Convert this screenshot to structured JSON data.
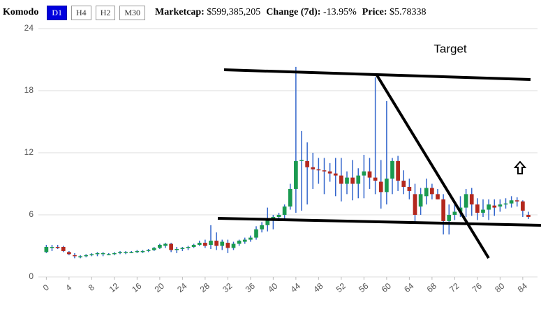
{
  "header": {
    "name": "Komodo",
    "buttons": [
      "D1",
      "H4",
      "H2",
      "M30"
    ],
    "active_button": 0,
    "stats": [
      {
        "label": "Marketcap:",
        "value": "$599,385,205"
      },
      {
        "label": "Change (7d):",
        "value": "-13.95%"
      },
      {
        "label": "Price:",
        "value": "$5.78338"
      }
    ]
  },
  "chart_data": {
    "type": "candlestick",
    "annotation": "Target",
    "up_color": "#1a9a50",
    "down_color": "#b3281e",
    "wick_color": "#3366cc",
    "x": [
      0,
      1,
      2,
      3,
      4,
      5,
      6,
      7,
      8,
      9,
      10,
      11,
      12,
      13,
      14,
      15,
      16,
      17,
      18,
      19,
      20,
      21,
      22,
      23,
      24,
      25,
      26,
      27,
      28,
      29,
      30,
      31,
      32,
      33,
      34,
      35,
      36,
      37,
      38,
      39,
      40,
      41,
      42,
      43,
      44,
      45,
      46,
      47,
      48,
      49,
      50,
      51,
      52,
      53,
      54,
      55,
      56,
      57,
      58,
      59,
      60,
      61,
      62,
      63,
      64,
      65,
      66,
      67,
      68,
      69,
      70,
      71,
      72,
      73,
      74,
      75,
      76,
      77,
      78,
      79,
      80,
      81,
      82,
      83,
      84,
      85
    ],
    "open": [
      2.4,
      2.8,
      2.9,
      2.9,
      2.4,
      2.1,
      1.9,
      2.0,
      2.1,
      2.2,
      2.2,
      2.2,
      2.2,
      2.3,
      2.3,
      2.4,
      2.4,
      2.4,
      2.5,
      2.6,
      2.8,
      3.0,
      3.2,
      2.6,
      2.7,
      2.8,
      2.9,
      3.1,
      3.3,
      3.1,
      3.5,
      3.0,
      3.3,
      2.8,
      3.2,
      3.4,
      3.6,
      3.8,
      4.6,
      5.0,
      5.5,
      5.8,
      6.0,
      6.8,
      8.5,
      11.2,
      11.2,
      10.6,
      10.4,
      10.3,
      10.2,
      10.0,
      9.8,
      9.0,
      9.6,
      9.0,
      9.8,
      10.2,
      9.6,
      9.2,
      8.2,
      9.5,
      11.2,
      9.3,
      8.7,
      8.0,
      6.8,
      7.8,
      8.6,
      8.0,
      7.5,
      5.4,
      6.0,
      6.3,
      6.7,
      8.0,
      7.0,
      6.2,
      6.5,
      6.9,
      6.8,
      7.0,
      7.1,
      7.4,
      7.3,
      6.0
    ],
    "high": [
      3.1,
      3.1,
      3.1,
      3.0,
      2.5,
      2.3,
      2.1,
      2.2,
      2.3,
      2.4,
      2.4,
      2.3,
      2.4,
      2.5,
      2.5,
      2.5,
      2.6,
      2.6,
      2.7,
      2.9,
      3.2,
      3.3,
      3.3,
      2.9,
      2.9,
      3.0,
      3.2,
      3.5,
      3.6,
      5.0,
      4.3,
      3.6,
      3.6,
      3.4,
      3.6,
      3.8,
      4.0,
      4.9,
      5.3,
      6.7,
      6.0,
      6.2,
      7.0,
      9.0,
      20.3,
      14.1,
      13.0,
      12.0,
      11.5,
      11.5,
      11.0,
      11.5,
      11.5,
      10.2,
      11.3,
      10.5,
      11.8,
      11.5,
      19.3,
      11.3,
      17.0,
      11.5,
      11.7,
      10.3,
      9.5,
      9.0,
      8.6,
      9.5,
      9.0,
      8.5,
      8.0,
      7.0,
      7.0,
      7.8,
      8.5,
      8.6,
      7.6,
      7.5,
      7.5,
      7.5,
      7.5,
      7.6,
      7.8,
      7.7,
      7.4,
      6.3
    ],
    "low": [
      2.3,
      2.5,
      2.7,
      2.4,
      2.1,
      1.8,
      1.8,
      1.9,
      2.0,
      2.0,
      2.0,
      2.1,
      2.1,
      2.2,
      2.2,
      2.3,
      2.3,
      2.3,
      2.4,
      2.5,
      2.7,
      2.8,
      2.4,
      2.3,
      2.5,
      2.6,
      2.8,
      3.0,
      2.8,
      2.7,
      2.6,
      2.6,
      2.3,
      2.6,
      3.0,
      3.2,
      3.4,
      3.6,
      4.3,
      4.4,
      4.6,
      5.4,
      5.5,
      6.5,
      6.2,
      6.4,
      7.0,
      8.5,
      9.0,
      8.0,
      9.2,
      7.8,
      7.3,
      8.0,
      7.4,
      7.6,
      7.6,
      8.5,
      8.0,
      6.6,
      7.0,
      8.0,
      8.3,
      8.0,
      7.5,
      5.3,
      6.0,
      7.0,
      7.5,
      7.5,
      4.1,
      4.1,
      5.5,
      5.8,
      5.8,
      5.9,
      5.5,
      5.8,
      5.5,
      5.9,
      6.3,
      6.6,
      6.7,
      6.8,
      5.8,
      5.6
    ],
    "close": [
      2.9,
      2.9,
      2.8,
      2.5,
      2.2,
      2.0,
      2.0,
      2.1,
      2.2,
      2.3,
      2.3,
      2.2,
      2.3,
      2.4,
      2.4,
      2.4,
      2.5,
      2.5,
      2.6,
      2.8,
      3.1,
      3.2,
      2.6,
      2.7,
      2.8,
      2.9,
      3.1,
      3.3,
      3.0,
      3.5,
      3.0,
      3.4,
      2.8,
      3.2,
      3.5,
      3.6,
      3.8,
      4.6,
      5.0,
      5.5,
      5.8,
      6.0,
      6.8,
      8.5,
      11.2,
      11.3,
      10.6,
      10.4,
      10.3,
      10.2,
      10.0,
      9.8,
      9.0,
      9.6,
      9.0,
      9.8,
      10.2,
      9.6,
      9.3,
      8.2,
      9.5,
      11.2,
      9.3,
      8.7,
      8.3,
      6.0,
      8.0,
      8.6,
      8.0,
      7.5,
      5.4,
      6.0,
      6.3,
      6.7,
      8.0,
      7.0,
      6.2,
      6.5,
      7.0,
      6.7,
      7.0,
      7.1,
      7.4,
      7.3,
      6.4,
      5.8
    ],
    "xlim": [
      -1.4,
      86.6
    ],
    "ylim": [
      0,
      24
    ],
    "xticks": [
      0,
      4,
      8,
      12,
      16,
      20,
      24,
      28,
      32,
      36,
      40,
      44,
      48,
      52,
      56,
      60,
      64,
      68,
      72,
      76,
      80,
      84
    ],
    "yticks": [
      0,
      6,
      12,
      18,
      24
    ],
    "grid": true
  }
}
